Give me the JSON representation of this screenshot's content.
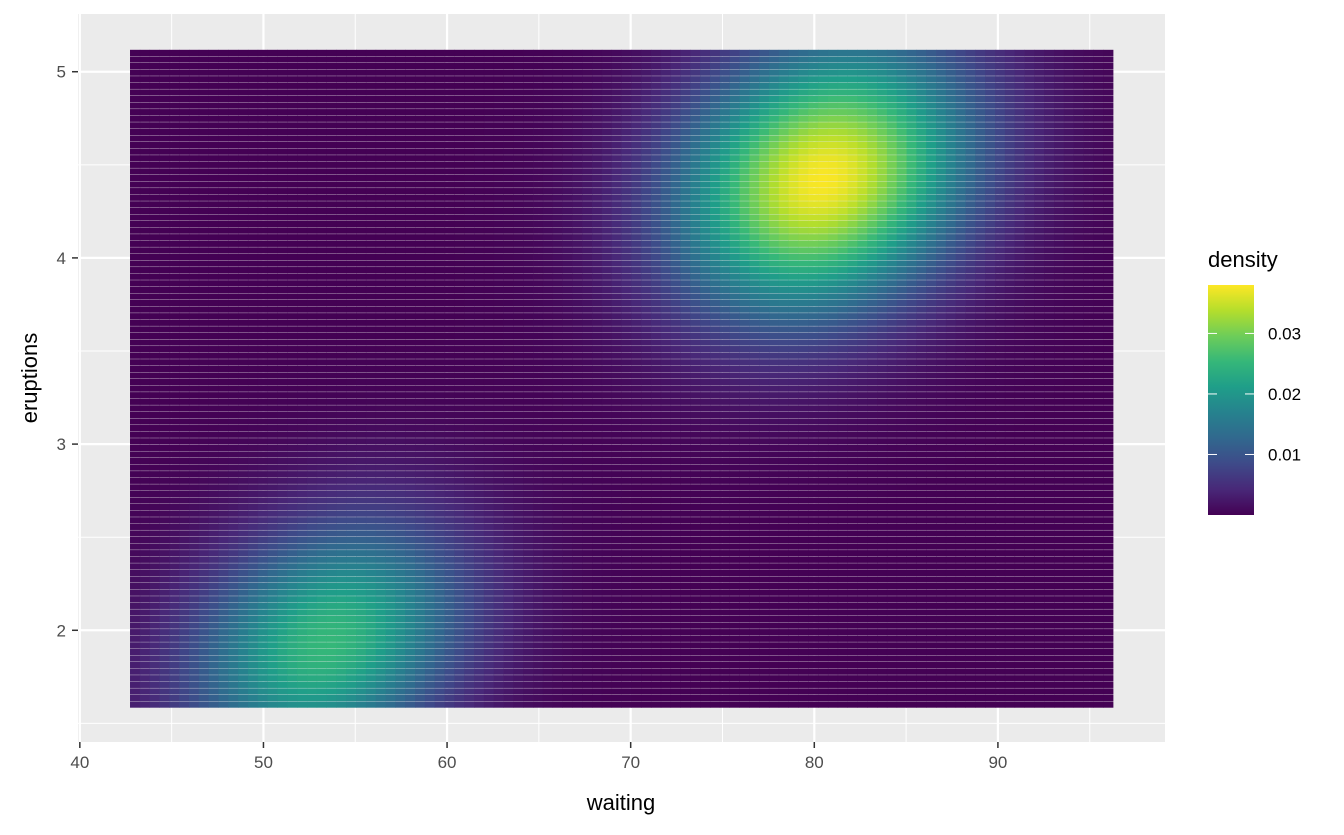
{
  "chart_data": {
    "type": "heatmap",
    "title": "",
    "xlabel": "waiting",
    "ylabel": "eruptions",
    "xlim": [
      39.9,
      99.1
    ],
    "ylim": [
      1.4,
      5.31
    ],
    "x_ticks": [
      40,
      50,
      60,
      70,
      80,
      90
    ],
    "x_tick_labels": [
      "40",
      "50",
      "60",
      "70",
      "80",
      "90"
    ],
    "y_ticks": [
      2,
      3,
      4,
      5
    ],
    "y_tick_labels": [
      "2",
      "3",
      "4",
      "5"
    ],
    "grid": true,
    "grid_x": 100,
    "grid_y": 100,
    "x_range": [
      43,
      96
    ],
    "y_range": [
      1.6,
      5.1
    ],
    "density_peaks": [
      {
        "waiting": 80.5,
        "eruptions": 4.42,
        "density": 0.038
      },
      {
        "waiting": 53.5,
        "eruptions": 1.93,
        "density": 0.025
      }
    ],
    "colorscale": "viridis",
    "legend": {
      "title": "density",
      "position": "right",
      "range": [
        0,
        0.038
      ],
      "ticks": [
        0.01,
        0.02,
        0.03
      ],
      "tick_labels": [
        "0.01",
        "0.02",
        "0.03"
      ]
    },
    "colors": {
      "panel": "#EBEBEB",
      "grid": "#FFFFFF",
      "low": "#440154",
      "high": "#FDE725"
    }
  }
}
